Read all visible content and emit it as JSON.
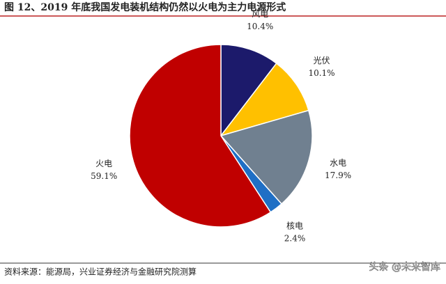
{
  "chart_data": {
    "type": "pie",
    "title": "图 12、2019 年底我国发电装机结构仍然以火电为主力电源形式",
    "categories": [
      "风电",
      "光伏",
      "水电",
      "核电",
      "火电"
    ],
    "values": [
      10.4,
      10.1,
      17.9,
      2.4,
      59.1
    ],
    "value_labels": [
      "10.4%",
      "10.1%",
      "17.9%",
      "2.4%",
      "59.1%"
    ],
    "colors": [
      "#1c1a6b",
      "#ffc000",
      "#708090",
      "#1f6fc5",
      "#c00000"
    ],
    "source": "资料来源：能源局，兴业证券经济与金融研究院测算",
    "watermark": "头条 @未来智库"
  }
}
